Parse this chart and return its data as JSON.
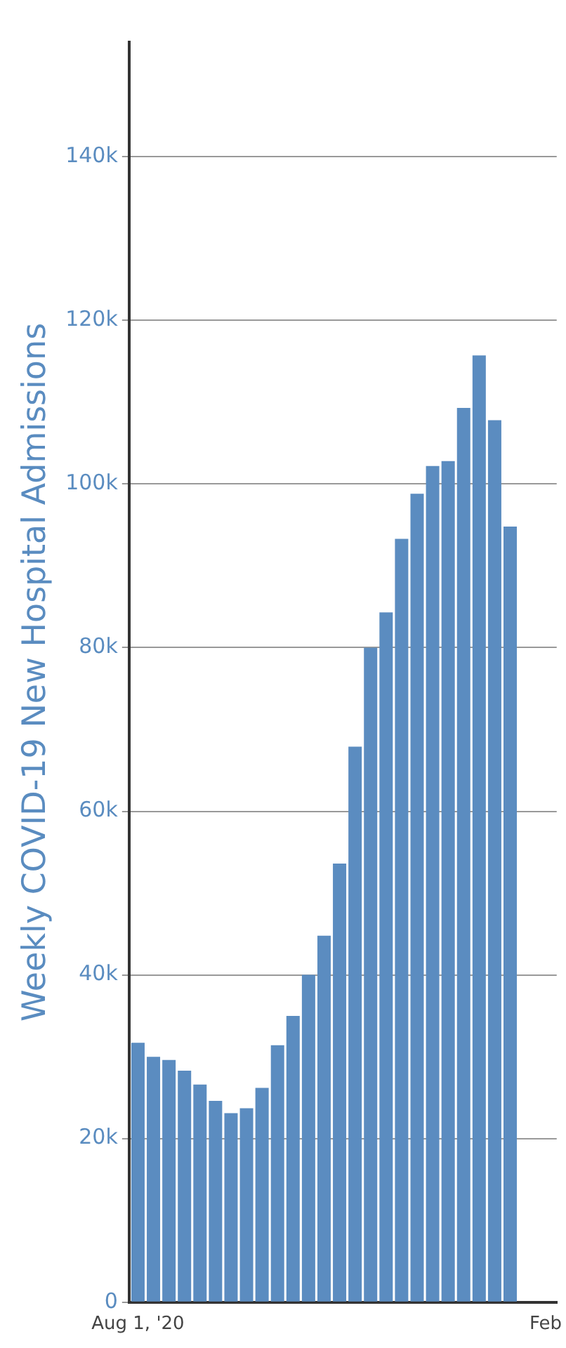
{
  "chart_data": {
    "type": "bar",
    "ylabel": "Weekly COVID-19 New Hospital Admissions",
    "x": [
      "2020-08-01",
      "2020-08-08",
      "2020-08-15",
      "2020-08-22",
      "2020-08-29",
      "2020-09-05",
      "2020-09-12",
      "2020-09-19",
      "2020-09-26",
      "2020-10-03",
      "2020-10-10",
      "2020-10-17",
      "2020-10-24",
      "2020-10-31",
      "2020-11-07",
      "2020-11-14",
      "2020-11-21",
      "2020-11-28",
      "2020-12-05",
      "2020-12-12",
      "2020-12-19",
      "2020-12-26",
      "2021-01-02",
      "2021-01-09",
      "2021-01-16"
    ],
    "values": [
      31700,
      30000,
      29600,
      28300,
      26600,
      24600,
      23100,
      23700,
      26200,
      31400,
      35000,
      40000,
      44800,
      53600,
      67900,
      80000,
      84300,
      93300,
      98800,
      102200,
      102800,
      109300,
      115700,
      107800,
      94800
    ],
    "color": "#5b8cc0",
    "xlim": [
      "2020-07-28",
      "2021-02-06"
    ],
    "xticks": [
      {
        "value": "2020-08-01",
        "label": "Aug 1, '20"
      },
      {
        "value": "2021-02-01",
        "label": "Feb"
      }
    ],
    "ylim": [
      0,
      154000
    ],
    "yticks": [
      {
        "value": 0,
        "label": "0"
      },
      {
        "value": 20000,
        "label": "20k"
      },
      {
        "value": 40000,
        "label": "40k"
      },
      {
        "value": 60000,
        "label": "60k"
      },
      {
        "value": 80000,
        "label": "80k"
      },
      {
        "value": 100000,
        "label": "100k"
      },
      {
        "value": 120000,
        "label": "120k"
      },
      {
        "value": 140000,
        "label": "140k"
      }
    ],
    "grid": "y",
    "legend": false
  }
}
